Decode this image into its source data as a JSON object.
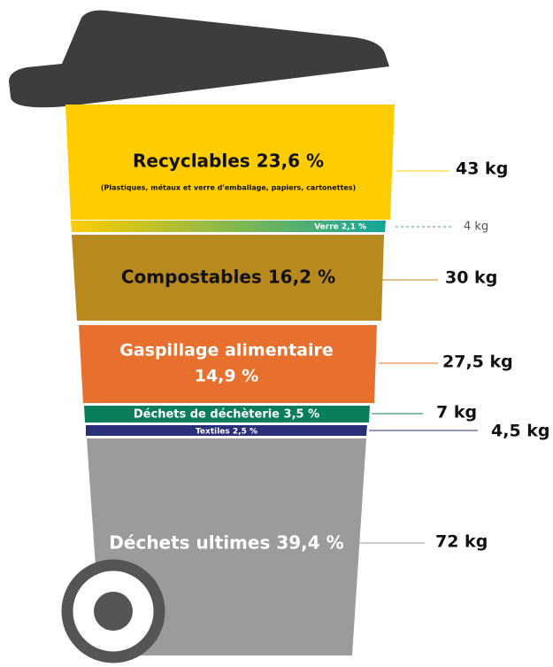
{
  "segments": [
    {
      "label": "Recyclables 23,6 %",
      "sublabel": "(Plastiques, métaux et verre d'emballage, papiers, cartonettes)",
      "weight": "43 kg"
    },
    {
      "label": "Verre 2,1 %",
      "weight": "4 kg"
    },
    {
      "label": "Compostables 16,2 %",
      "weight": "30 kg"
    },
    {
      "label": [
        "Gaspillage alimentaire",
        "14,9 %"
      ],
      "weight": "27,5 kg"
    },
    {
      "label": "Déchets de déchèterie 3,5 %",
      "weight": "7 kg"
    },
    {
      "label": "Textiles 2,5 %",
      "weight": "4,5 kg"
    },
    {
      "label": "Déchets ultimes 39,4 %",
      "weight": "72 kg"
    }
  ]
}
